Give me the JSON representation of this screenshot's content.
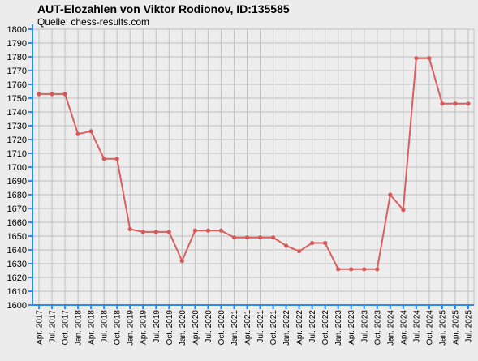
{
  "chart_data": {
    "type": "line",
    "title": "AUT-Elozahlen von Viktor Rodionov, ID:135585",
    "subtitle": "Quelle: chess-results.com",
    "categories": [
      "Apr. 2017",
      "Jul. 2017",
      "Oct. 2017",
      "Jan. 2018",
      "Apr. 2018",
      "Jul. 2018",
      "Oct. 2018",
      "Jan. 2019",
      "Apr. 2019",
      "Jul. 2019",
      "Oct. 2019",
      "Jan. 2020",
      "Apr. 2020",
      "Jul. 2020",
      "Oct. 2020",
      "Jan. 2021",
      "Apr. 2021",
      "Jul. 2021",
      "Oct. 2021",
      "Jan. 2022",
      "Apr. 2022",
      "Jul. 2022",
      "Oct. 2022",
      "Jan. 2023",
      "Apr. 2023",
      "Jul. 2023",
      "Oct. 2023",
      "Jan. 2024",
      "Apr. 2024",
      "Jul. 2024",
      "Oct. 2024",
      "Jan. 2025",
      "Apr. 2025",
      "Jul. 2025"
    ],
    "series": [
      {
        "values": [
          1753,
          1753,
          1753,
          1724,
          1726,
          1706,
          1706,
          1655,
          1653,
          1653,
          1653,
          1632,
          1654,
          1654,
          1654,
          1649,
          1649,
          1649,
          1649,
          1643,
          1639,
          1645,
          1645,
          1626,
          1626,
          1626,
          1626,
          1680,
          1669,
          1779,
          1779,
          1746,
          1746,
          1746
        ]
      }
    ],
    "ylim": [
      1600,
      1800
    ],
    "yticks": [
      1600,
      1610,
      1620,
      1630,
      1640,
      1650,
      1660,
      1670,
      1680,
      1690,
      1700,
      1710,
      1720,
      1730,
      1740,
      1750,
      1760,
      1770,
      1780,
      1790,
      1800
    ],
    "grid": true,
    "legend": "none"
  },
  "colors": {
    "background": "#ececec",
    "plot_background": "#ededed",
    "grid": "#bfbfbf",
    "axis": "#2a8cf0",
    "line": "#d9605f",
    "marker": "#d45a59"
  }
}
